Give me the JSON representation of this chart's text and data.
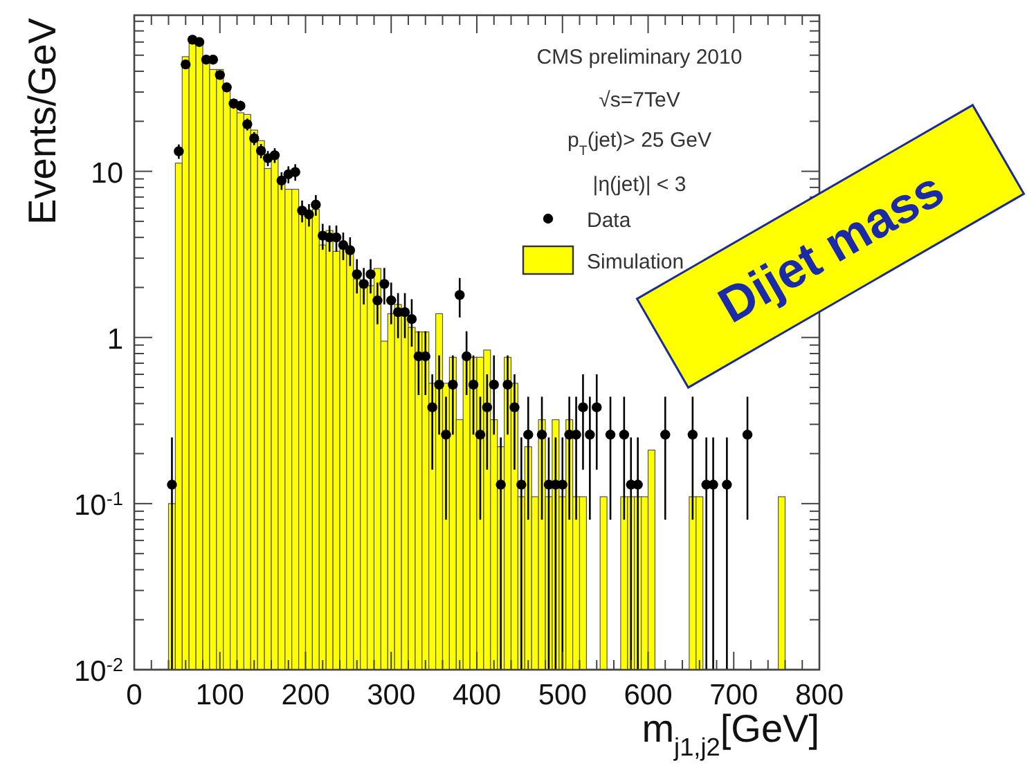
{
  "chart_data": {
    "type": "histogram",
    "xlabel": "m$_{j1,j2}$[GeV]",
    "ylabel": "Events/GeV",
    "log": "y",
    "legend": "top right",
    "marker": "circle",
    "annotations": [
      "CMS preliminary 2010",
      "√s=7TeV",
      "p$_{T}$(jet)> 25 GeV",
      "|η(jet)| < 3",
      "Dijet mass"
    ],
    "xlim": [
      0,
      800
    ],
    "ylim": [
      0.01,
      87
    ],
    "xticks": [
      0,
      {
        "value": 20,
        "label": null
      },
      {
        "value": 40,
        "label": null
      },
      {
        "value": 60,
        "label": null
      },
      {
        "value": 80,
        "label": null
      },
      100,
      {
        "value": 120,
        "label": null
      },
      {
        "value": 140,
        "label": null
      },
      {
        "value": 160,
        "label": null
      },
      {
        "value": 180,
        "label": null
      },
      200,
      {
        "value": 220,
        "label": null
      },
      {
        "value": 240,
        "label": null
      },
      {
        "value": 260,
        "label": null
      },
      {
        "value": 280,
        "label": null
      },
      300,
      {
        "value": 320,
        "label": null
      },
      {
        "value": 340,
        "label": null
      },
      {
        "value": 360,
        "label": null
      },
      {
        "value": 380,
        "label": null
      },
      400,
      {
        "value": 420,
        "label": null
      },
      {
        "value": 440,
        "label": null
      },
      {
        "value": 460,
        "label": null
      },
      {
        "value": 480,
        "label": null
      },
      500,
      {
        "value": 520,
        "label": null
      },
      {
        "value": 540,
        "label": null
      },
      {
        "value": 560,
        "label": null
      },
      {
        "value": 580,
        "label": null
      },
      600,
      {
        "value": 620,
        "label": null
      },
      {
        "value": 640,
        "label": null
      },
      {
        "value": 660,
        "label": null
      },
      {
        "value": 680,
        "label": null
      },
      700,
      {
        "value": 720,
        "label": null
      },
      {
        "value": 740,
        "label": null
      },
      {
        "value": 760,
        "label": null
      },
      {
        "value": 780,
        "label": null
      },
      800
    ],
    "yticks": [
      {
        "value": 0.01,
        "label": "10$^{-2}$"
      },
      {
        "value": 0.02,
        "label": null
      },
      {
        "value": 0.03,
        "label": null
      },
      {
        "value": 0.04,
        "label": null
      },
      {
        "value": 0.05,
        "label": null
      },
      {
        "value": 0.06,
        "label": null
      },
      {
        "value": 0.07,
        "label": null
      },
      {
        "value": 0.08,
        "label": null
      },
      {
        "value": 0.09,
        "label": null
      },
      {
        "value": 0.1,
        "label": "10$^{-1}$"
      },
      {
        "value": 0.2,
        "label": null
      },
      {
        "value": 0.3,
        "label": null
      },
      {
        "value": 0.4,
        "label": null
      },
      {
        "value": 0.5,
        "label": null
      },
      {
        "value": 0.6,
        "label": null
      },
      {
        "value": 0.7,
        "label": null
      },
      {
        "value": 0.8,
        "label": null
      },
      {
        "value": 0.9,
        "label": null
      },
      1,
      {
        "value": 2,
        "label": null
      },
      {
        "value": 3,
        "label": null
      },
      {
        "value": 4,
        "label": null
      },
      {
        "value": 5,
        "label": null
      },
      {
        "value": 6,
        "label": null
      },
      {
        "value": 7,
        "label": null
      },
      {
        "value": 8,
        "label": null
      },
      {
        "value": 9,
        "label": null
      },
      10,
      {
        "value": 20,
        "label": null
      },
      {
        "value": 30,
        "label": null
      },
      {
        "value": 40,
        "label": null
      },
      {
        "value": 50,
        "label": null
      },
      {
        "value": 60,
        "label": null
      },
      {
        "value": 70,
        "label": null
      },
      {
        "value": 80,
        "label": null
      }
    ],
    "bins": [
      0,
      8,
      16,
      24,
      32,
      40,
      48,
      56,
      64,
      72,
      80,
      88,
      96,
      104,
      112,
      120,
      128,
      136,
      144,
      152,
      160,
      168,
      176,
      184,
      192,
      200,
      208,
      216,
      224,
      232,
      240,
      248,
      256,
      264,
      272,
      280,
      288,
      296,
      304,
      312,
      320,
      328,
      336,
      344,
      352,
      360,
      368,
      376,
      384,
      392,
      400,
      408,
      416,
      424,
      432,
      440,
      448,
      456,
      464,
      472,
      480,
      488,
      496,
      504,
      512,
      520,
      528,
      536,
      544,
      552,
      560,
      568,
      576,
      584,
      592,
      600,
      608,
      616,
      624,
      632,
      640,
      648,
      656,
      664,
      672,
      680,
      688,
      696,
      704,
      712,
      720,
      728,
      736,
      744,
      752,
      760,
      768,
      776,
      784,
      792,
      800
    ],
    "series": [
      {
        "name": "Simulation",
        "color": "#ffff00",
        "values": [
          null,
          null,
          null,
          null,
          null,
          0.1,
          11.2,
          49,
          59,
          59,
          47,
          41,
          41,
          32,
          27,
          22.5,
          22,
          17.7,
          15.3,
          10.4,
          12.7,
          8.9,
          7.8,
          7.8,
          5.7,
          5.7,
          5.9,
          3.6,
          4.4,
          3.3,
          3.7,
          3.2,
          2.25,
          2.05,
          2.05,
          2.6,
          0.95,
          1.39,
          1.58,
          1.45,
          1.15,
          1.08,
          1.08,
          0.53,
          1.39,
          0.53,
          0.76,
          0.32,
          0.76,
          0.76,
          0.76,
          0.84,
          0.32,
          0.22,
          0.76,
          0.53,
          0.11,
          0.22,
          0.11,
          0.32,
          0.11,
          0.32,
          0.11,
          0.32,
          0.11,
          0.11,
          null,
          null,
          0.11,
          null,
          null,
          0.11,
          0.11,
          0.11,
          0.11,
          0.21,
          null,
          null,
          null,
          null,
          null,
          0.11,
          0.11,
          null,
          null,
          null,
          null,
          null,
          null,
          null,
          null,
          null,
          null,
          null,
          0.11,
          null,
          null,
          null,
          null,
          null
        ]
      },
      {
        "type": "scatter",
        "name": "Data",
        "color": "#000000",
        "x": [
          44,
          52,
          60,
          68,
          76,
          84,
          92,
          100,
          108,
          116,
          124,
          132,
          140,
          148,
          156,
          164,
          172,
          180,
          188,
          196,
          204,
          212,
          220,
          228,
          236,
          244,
          252,
          260,
          268,
          276,
          284,
          292,
          300,
          308,
          316,
          324,
          332,
          340,
          348,
          356,
          364,
          372,
          380,
          388,
          396,
          404,
          412,
          420,
          428,
          436,
          444,
          452,
          460,
          476,
          484,
          492,
          500,
          508,
          516,
          524,
          532,
          540,
          556,
          572,
          580,
          588,
          620,
          652,
          668,
          676,
          692,
          716
        ],
        "values": [
          0.13,
          13.2,
          44,
          62,
          60,
          47,
          47,
          38,
          32,
          25.6,
          24.8,
          19.2,
          15.8,
          13.3,
          12,
          12.5,
          8.8,
          9.6,
          9.9,
          5.8,
          5.5,
          6.3,
          4.1,
          4.0,
          4.0,
          3.6,
          3.35,
          2.4,
          2.1,
          2.4,
          1.67,
          2.1,
          1.67,
          1.42,
          1.42,
          1.29,
          0.77,
          0.77,
          0.38,
          0.52,
          0.26,
          0.52,
          1.8,
          0.77,
          0.52,
          0.26,
          0.38,
          0.52,
          0.13,
          0.52,
          0.38,
          0.13,
          0.26,
          0.26,
          0.13,
          0.13,
          0.13,
          0.26,
          0.26,
          0.38,
          0.26,
          0.38,
          0.26,
          0.26,
          0.13,
          0.13,
          0.26,
          0.26,
          0.13,
          0.13,
          0.13,
          0.26
        ],
        "errors": [
          0.12,
          1.31,
          2.39,
          2.84,
          2.79,
          2.47,
          2.47,
          2.22,
          2.04,
          1.82,
          1.8,
          1.58,
          1.43,
          1.31,
          1.25,
          1.27,
          1.07,
          1.12,
          1.13,
          0.87,
          0.85,
          0.9,
          0.73,
          0.72,
          0.72,
          0.68,
          0.66,
          0.56,
          0.52,
          0.56,
          0.47,
          0.52,
          0.47,
          0.43,
          0.43,
          0.41,
          0.32,
          0.32,
          0.22,
          0.26,
          0.18,
          0.26,
          0.48,
          0.32,
          0.26,
          0.18,
          0.22,
          0.26,
          0.12,
          0.26,
          0.22,
          0.12,
          0.18,
          0.18,
          0.12,
          0.12,
          0.12,
          0.18,
          0.18,
          0.22,
          0.18,
          0.22,
          0.18,
          0.18,
          0.12,
          0.12,
          0.18,
          0.18,
          0.12,
          0.12,
          0.12,
          0.18
        ]
      }
    ]
  }
}
